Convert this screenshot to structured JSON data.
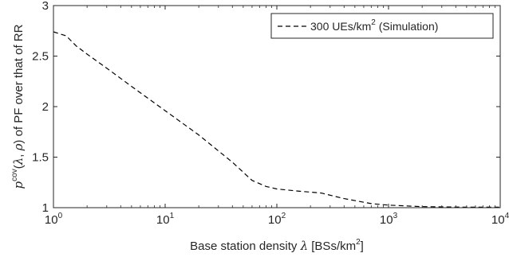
{
  "chart_data": {
    "type": "line",
    "x_scale": "log",
    "xlim": [
      1,
      10000
    ],
    "ylim": [
      1,
      3
    ],
    "x_ticks": [
      {
        "base": "10",
        "exp": "0"
      },
      {
        "base": "10",
        "exp": "1"
      },
      {
        "base": "10",
        "exp": "2"
      },
      {
        "base": "10",
        "exp": "3"
      },
      {
        "base": "10",
        "exp": "4"
      }
    ],
    "y_ticks": [
      "1",
      "1.5",
      "2",
      "2.5",
      "3"
    ],
    "y_tick_values": [
      1,
      1.5,
      2,
      2.5,
      3
    ],
    "xlabel": {
      "prefix": "Base station density ",
      "symbol": "λ",
      "unit": " [BSs/km",
      "unit_sup": "2",
      "unit_end": "]"
    },
    "ylabel": {
      "p": "p",
      "sup": "cov",
      "args_open": "(",
      "lambda": "λ",
      "sep": ", ",
      "rho": "ρ",
      "args_close": ")",
      "rest": " of PF over that of RR"
    },
    "grid": false,
    "legend_position": "top-right",
    "series": [
      {
        "name": {
          "main": "300 UEs/km",
          "sup": "2",
          "tail": " (Simulation)"
        },
        "line_style": "dashed",
        "color": "#000000",
        "x": [
          1,
          1.3,
          1.6,
          2,
          3,
          5,
          10,
          20,
          40,
          60,
          80,
          100,
          150,
          250,
          400,
          700,
          1000,
          2000,
          5000,
          10000
        ],
        "y": [
          2.74,
          2.7,
          2.6,
          2.52,
          2.38,
          2.2,
          1.96,
          1.72,
          1.45,
          1.27,
          1.21,
          1.185,
          1.165,
          1.145,
          1.09,
          1.04,
          1.025,
          1.01,
          1.005,
          1.005
        ]
      }
    ]
  }
}
